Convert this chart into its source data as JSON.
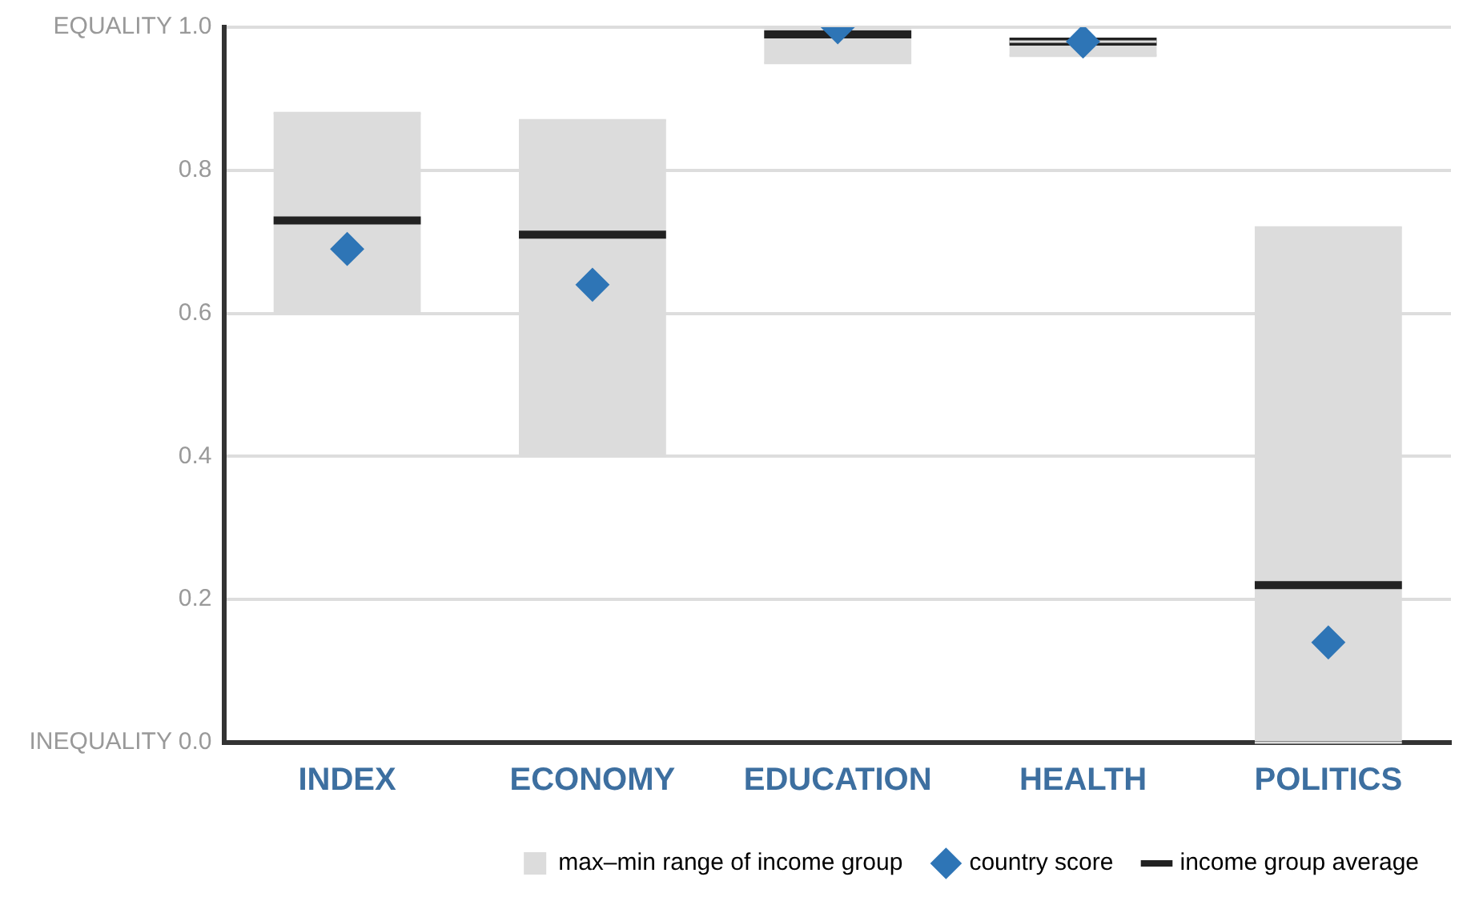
{
  "chart_data": {
    "type": "box",
    "categories": [
      "INDEX",
      "ECONOMY",
      "EDUCATION",
      "HEALTH",
      "POLITICS"
    ],
    "series": [
      {
        "name": "max–min range of income group",
        "color": "#dcdcdc",
        "boxes": [
          {
            "low": 0.6,
            "q1": 0.6,
            "median": 0.73,
            "q3": 0.88,
            "high": 0.88
          },
          {
            "low": 0.4,
            "q1": 0.4,
            "median": 0.71,
            "q3": 0.87,
            "high": 0.87
          },
          {
            "low": 0.95,
            "q1": 0.95,
            "median": 0.99,
            "q3": 1.0,
            "high": 1.0
          },
          {
            "low": 0.96,
            "q1": 0.96,
            "median": 0.98,
            "q3": 0.98,
            "high": 0.98
          },
          {
            "low": 0,
            "q1": 0,
            "median": 0.22,
            "q3": 0.72,
            "high": 0.72
          }
        ]
      },
      {
        "type": "scatter",
        "name": "country score",
        "color": "#2e75b6",
        "marker": "diamond",
        "x": [
          "INDEX",
          "ECONOMY",
          "EDUCATION",
          "HEALTH",
          "POLITICS"
        ],
        "values": [
          0.69,
          0.64,
          1.0,
          0.98,
          0.14
        ]
      }
    ],
    "annotations": [
      "income group average"
    ],
    "ylim": [
      0,
      1
    ],
    "yticks": [
      {
        "value": 0,
        "label": "INEQUALITY 0.0"
      },
      {
        "value": 0.2,
        "label": "0.2"
      },
      {
        "value": 0.4,
        "label": "0.4"
      },
      {
        "value": 0.6,
        "label": "0.6"
      },
      {
        "value": 0.8,
        "label": "0.8"
      },
      {
        "value": 1,
        "label": "EQUALITY 1.0"
      }
    ],
    "grid": "y",
    "legend": "bottom"
  }
}
